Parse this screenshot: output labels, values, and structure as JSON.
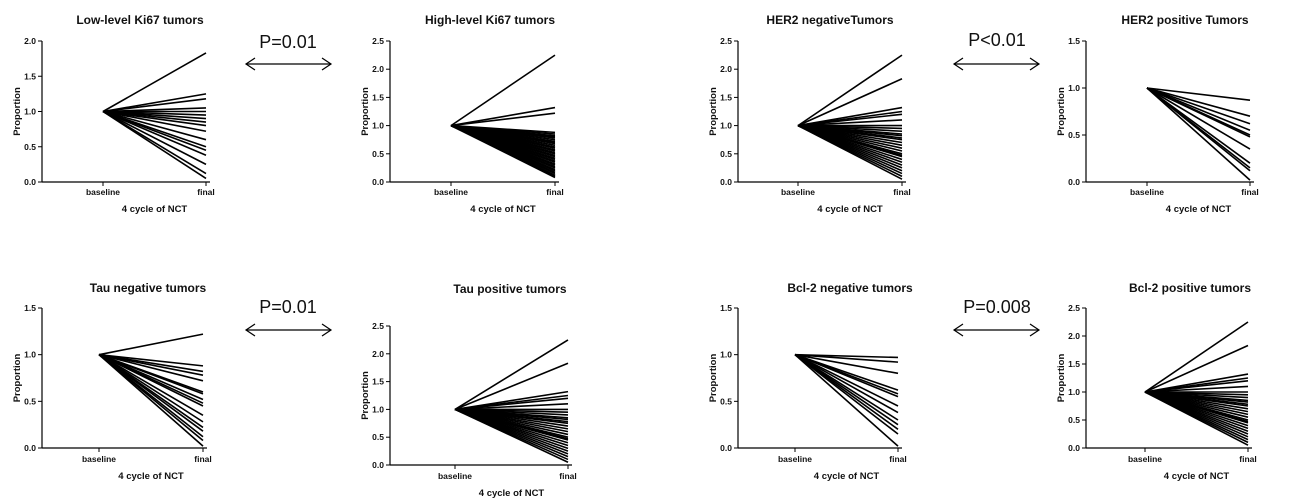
{
  "chart_data": [
    {
      "type": "line",
      "title": "Low-level Ki67 tumors",
      "xlabel": "4 cycle of NCT",
      "ylabel": "Proportion",
      "categories": [
        "baseline",
        "final"
      ],
      "ylim": [
        0,
        2.0
      ],
      "yticks": [
        "0.0",
        "0.5",
        "1.0",
        "1.5",
        "2.0"
      ],
      "series_final_values": [
        1.83,
        1.25,
        1.18,
        1.05,
        1.0,
        0.95,
        0.9,
        0.85,
        0.8,
        0.72,
        0.6,
        0.5,
        0.45,
        0.38,
        0.25,
        0.12,
        0.05
      ]
    },
    {
      "type": "line",
      "title": "High-level Ki67 tumors",
      "xlabel": "4 cycle of NCT",
      "ylabel": "Proportion",
      "categories": [
        "baseline",
        "final"
      ],
      "ylim": [
        0,
        2.5
      ],
      "yticks": [
        "0.0",
        "0.5",
        "1.0",
        "1.5",
        "2.0",
        "2.5"
      ],
      "series_final_values": [
        2.25,
        1.32,
        1.22,
        0.88,
        0.85,
        0.82,
        0.8,
        0.78,
        0.75,
        0.72,
        0.7,
        0.68,
        0.65,
        0.62,
        0.6,
        0.57,
        0.55,
        0.52,
        0.5,
        0.47,
        0.45,
        0.42,
        0.4,
        0.37,
        0.35,
        0.32,
        0.3,
        0.27,
        0.25,
        0.22,
        0.2,
        0.17,
        0.15,
        0.12,
        0.1,
        0.08
      ]
    },
    {
      "type": "line",
      "title": "HER2 negativeTumors",
      "xlabel": "4 cycle of NCT",
      "ylabel": "Proportion",
      "categories": [
        "baseline",
        "final"
      ],
      "ylim": [
        0,
        2.5
      ],
      "yticks": [
        "0.0",
        "0.5",
        "1.0",
        "1.5",
        "2.0",
        "2.5"
      ],
      "series_final_values": [
        2.25,
        1.83,
        1.32,
        1.25,
        1.2,
        1.1,
        1.0,
        0.95,
        0.9,
        0.85,
        0.82,
        0.78,
        0.75,
        0.7,
        0.65,
        0.6,
        0.55,
        0.5,
        0.47,
        0.45,
        0.4,
        0.35,
        0.3,
        0.25,
        0.2,
        0.15,
        0.1,
        0.05
      ]
    },
    {
      "type": "line",
      "title": "HER2 positive Tumors",
      "xlabel": "4 cycle of NCT",
      "ylabel": "Proportion",
      "categories": [
        "baseline",
        "final"
      ],
      "ylim": [
        0,
        1.5
      ],
      "yticks": [
        "0.0",
        "0.5",
        "1.0",
        "1.5"
      ],
      "series_final_values": [
        0.87,
        0.7,
        0.62,
        0.55,
        0.5,
        0.48,
        0.35,
        0.2,
        0.15,
        0.12,
        0.02
      ]
    },
    {
      "type": "line",
      "title": "Tau negative tumors",
      "xlabel": "4 cycle of NCT",
      "ylabel": "Proportion",
      "categories": [
        "baseline",
        "final"
      ],
      "ylim": [
        0,
        1.5
      ],
      "yticks": [
        "0.0",
        "0.5",
        "1.0",
        "1.5"
      ],
      "series_final_values": [
        1.22,
        0.88,
        0.82,
        0.78,
        0.72,
        0.6,
        0.58,
        0.52,
        0.48,
        0.45,
        0.35,
        0.28,
        0.22,
        0.18,
        0.12,
        0.08,
        0.02
      ]
    },
    {
      "type": "line",
      "title": "Tau positive tumors",
      "xlabel": "4 cycle of NCT",
      "ylabel": "Proportion",
      "categories": [
        "baseline",
        "final"
      ],
      "ylim": [
        0,
        2.5
      ],
      "yticks": [
        "0.0",
        "0.5",
        "1.0",
        "1.5",
        "2.0",
        "2.5"
      ],
      "series_final_values": [
        2.25,
        1.83,
        1.32,
        1.25,
        1.2,
        1.1,
        1.0,
        0.95,
        0.9,
        0.85,
        0.82,
        0.78,
        0.75,
        0.7,
        0.65,
        0.6,
        0.55,
        0.5,
        0.47,
        0.45,
        0.4,
        0.35,
        0.3,
        0.25,
        0.2,
        0.15,
        0.1,
        0.05
      ]
    },
    {
      "type": "line",
      "title": "Bcl-2 negative tumors",
      "xlabel": "4 cycle of NCT",
      "ylabel": "Proportion",
      "categories": [
        "baseline",
        "final"
      ],
      "ylim": [
        0,
        1.5
      ],
      "yticks": [
        "0.0",
        "0.5",
        "1.0",
        "1.5"
      ],
      "series_final_values": [
        0.97,
        0.92,
        0.8,
        0.62,
        0.58,
        0.55,
        0.45,
        0.38,
        0.3,
        0.25,
        0.2,
        0.15,
        0.02
      ]
    },
    {
      "type": "line",
      "title": "Bcl-2 positive tumors",
      "xlabel": "4 cycle of NCT",
      "ylabel": "Proportion",
      "categories": [
        "baseline",
        "final"
      ],
      "ylim": [
        0,
        2.5
      ],
      "yticks": [
        "0.0",
        "0.5",
        "1.0",
        "1.5",
        "2.0",
        "2.5"
      ],
      "series_final_values": [
        2.25,
        1.83,
        1.32,
        1.25,
        1.2,
        1.1,
        1.0,
        0.95,
        0.9,
        0.85,
        0.82,
        0.78,
        0.75,
        0.7,
        0.65,
        0.6,
        0.55,
        0.5,
        0.47,
        0.45,
        0.4,
        0.35,
        0.3,
        0.25,
        0.2,
        0.15,
        0.1,
        0.05
      ]
    }
  ],
  "comparisons": [
    {
      "label": "P=0.01",
      "between": [
        "Low-level Ki67 tumors",
        "High-level Ki67 tumors"
      ]
    },
    {
      "label": "P<0.01",
      "between": [
        "HER2 negativeTumors",
        "HER2 positive Tumors"
      ]
    },
    {
      "label": "P=0.01",
      "between": [
        "Tau negative tumors",
        "Tau positive tumors"
      ]
    },
    {
      "label": "P=0.008",
      "between": [
        "Bcl-2 negative tumors",
        "Bcl-2 positive tumors"
      ]
    }
  ],
  "baseline_value": 1.0,
  "line_color": "#000000"
}
